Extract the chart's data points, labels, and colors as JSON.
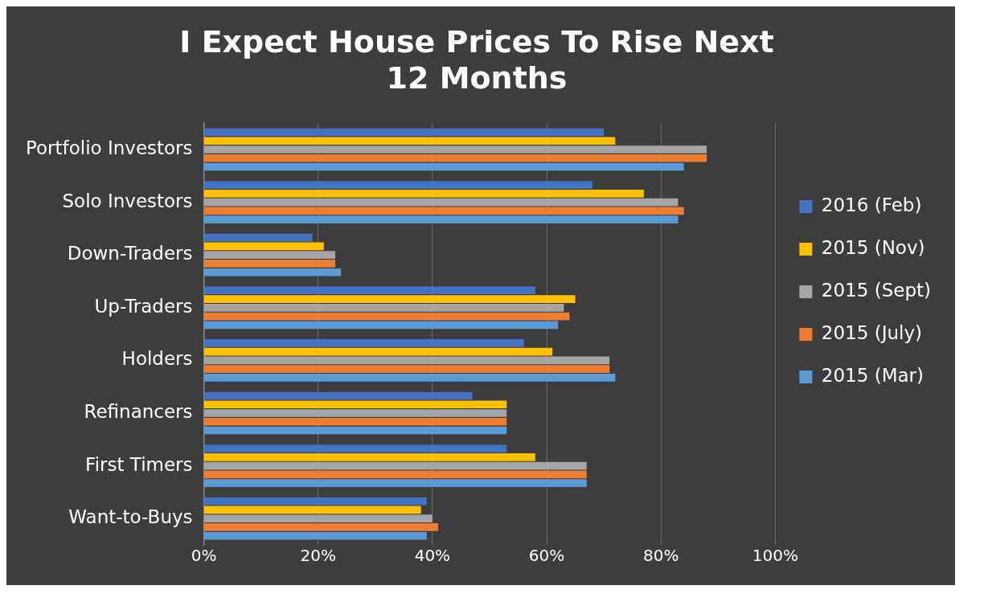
{
  "chart_data": {
    "type": "bar",
    "orientation": "horizontal",
    "title": "I Expect House Prices To Rise Next 12 Months",
    "categories": [
      "Portfolio Investors",
      "Solo Investors",
      "Down-Traders",
      "Up-Traders",
      "Holders",
      "Refinancers",
      "First Timers",
      "Want-to-Buys"
    ],
    "series": [
      {
        "name": "2016 (Feb)",
        "color": "#4472c4",
        "values": [
          70,
          68,
          19,
          58,
          56,
          47,
          53,
          39
        ]
      },
      {
        "name": "2015 (Nov)",
        "color": "#ffc000",
        "values": [
          72,
          77,
          21,
          65,
          61,
          53,
          58,
          38
        ]
      },
      {
        "name": "2015 (Sept)",
        "color": "#a5a5a5",
        "values": [
          88,
          83,
          23,
          63,
          71,
          53,
          67,
          40
        ]
      },
      {
        "name": "2015 (July)",
        "color": "#ed7d31",
        "values": [
          88,
          84,
          23,
          64,
          71,
          53,
          67,
          41
        ]
      },
      {
        "name": "2015 (Mar)",
        "color": "#5b9bd5",
        "values": [
          84,
          83,
          24,
          62,
          72,
          53,
          67,
          39
        ]
      }
    ],
    "xlim": [
      0,
      100
    ],
    "xticks": [
      {
        "value": 0,
        "label": "0%"
      },
      {
        "value": 20,
        "label": "20%"
      },
      {
        "value": 40,
        "label": "40%"
      },
      {
        "value": 60,
        "label": "60%"
      },
      {
        "value": 80,
        "label": "80%"
      },
      {
        "value": 100,
        "label": "100%"
      }
    ],
    "grid": "x",
    "legend": "right"
  }
}
